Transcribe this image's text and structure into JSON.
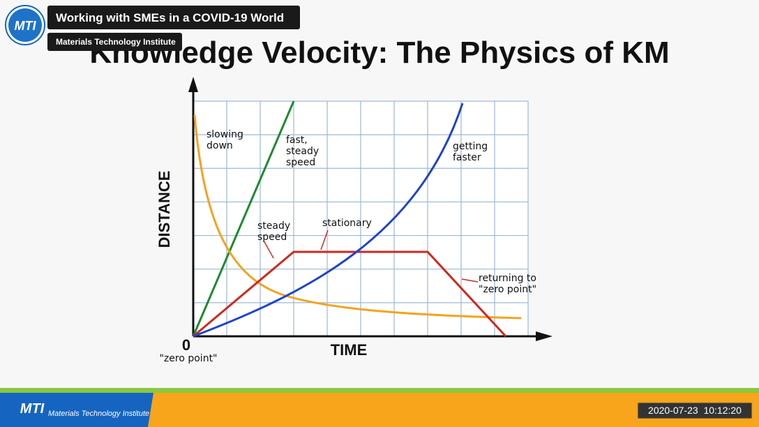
{
  "player": {
    "title": "Working with SMEs in a COVID-19 World",
    "channel": "Materials Technology Institute",
    "logo": "MTI"
  },
  "slide": {
    "title": "Knowledge Velocity: The Physics of KM",
    "diagram": {
      "y_axis": "DISTANCE",
      "x_axis": "TIME",
      "origin": "0",
      "origin_note": "\"zero point\"",
      "labels": {
        "slowing_down": [
          "slowing",
          "down"
        ],
        "fast_steady_speed": [
          "fast,",
          "steady",
          "speed"
        ],
        "getting_faster": [
          "getting",
          "faster"
        ],
        "steady_speed": [
          "steady",
          "speed"
        ],
        "stationary": [
          "stationary"
        ],
        "returning": [
          "returning to",
          "\"zero point\""
        ]
      }
    }
  },
  "footer": {
    "brand_logo": "MTI",
    "brand": "Materials Technology Institute",
    "timestamp": "2020-07-23  10:12:20"
  }
}
